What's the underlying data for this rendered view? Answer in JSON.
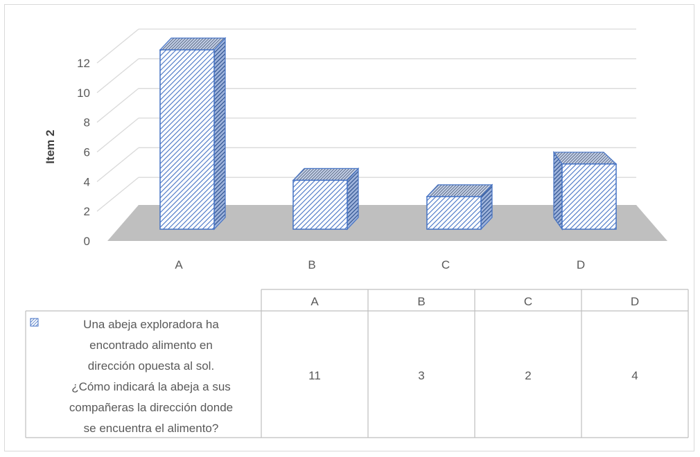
{
  "chart_data": {
    "type": "bar",
    "style": "3d-column",
    "categories": [
      "A",
      "B",
      "C",
      "D"
    ],
    "series": [
      {
        "name": "Una abeja exploradora ha encontrado alimento en dirección opuesta al sol. ¿Cómo indicará la abeja a sus compañeras la dirección donde se encuentra el alimento?",
        "values": [
          11,
          3,
          2,
          4
        ],
        "color": "#4472c4"
      }
    ],
    "ylabel": "Item 2",
    "xlabel": "",
    "ylim": [
      0,
      12
    ],
    "yticks": [
      "0",
      "2",
      "4",
      "6",
      "8",
      "10",
      "12"
    ],
    "grid": true,
    "legend": "data-table-below",
    "table": {
      "headers": [
        "A",
        "B",
        "C",
        "D"
      ],
      "legend_lines": [
        "Una abeja exploradora ha",
        "encontrado alimento en",
        "dirección opuesta al sol.",
        "¿Cómo indicará la abeja a sus",
        "compañeras la dirección donde",
        "se encuentra el alimento?"
      ],
      "values": [
        "11",
        "3",
        "2",
        "4"
      ]
    },
    "floor_color": "#bfbfbf",
    "grid_color": "#d9d9d9"
  }
}
